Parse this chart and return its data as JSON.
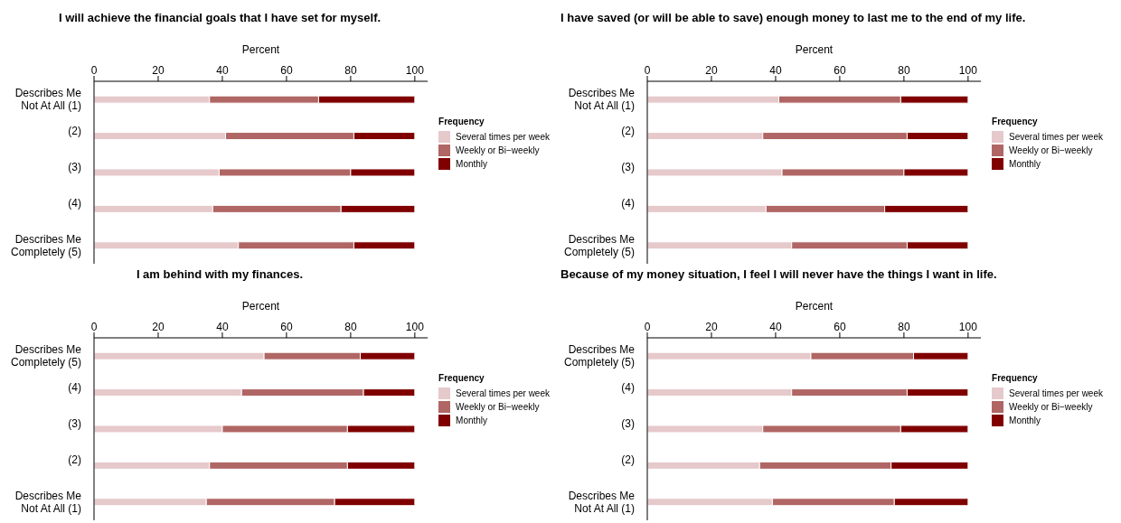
{
  "chart_data": [
    {
      "type": "bar",
      "orientation": "horizontal",
      "stacked": true,
      "title": "I will achieve the financial goals that I have set for myself.",
      "xlabel": "Percent",
      "legend_title": "Frequency",
      "legend": "right",
      "grid": false,
      "xlim": [
        0,
        104
      ],
      "xticks": [
        0,
        20,
        40,
        60,
        80,
        100
      ],
      "categories": [
        "Describes Me\nNot At All (1)",
        "(2)",
        "(3)",
        "(4)",
        "Describes Me\nCompletely (5)"
      ],
      "series": [
        {
          "name": "Several times per week",
          "color": "#e6c9cb",
          "values": [
            36,
            41,
            39,
            37,
            45
          ]
        },
        {
          "name": "Weekly or Bi−weekly",
          "color": "#b06664",
          "values": [
            34,
            40,
            41,
            40,
            36
          ]
        },
        {
          "name": "Monthly",
          "color": "#800000",
          "values": [
            30,
            19,
            20,
            23,
            19
          ]
        }
      ]
    },
    {
      "type": "bar",
      "orientation": "horizontal",
      "stacked": true,
      "title": "I have saved (or will be able to save) enough money to last me to the end of my life.",
      "xlabel": "Percent",
      "legend_title": "Frequency",
      "legend": "right",
      "grid": false,
      "xlim": [
        0,
        104
      ],
      "xticks": [
        0,
        20,
        40,
        60,
        80,
        100
      ],
      "categories": [
        "Describes Me\nNot At All (1)",
        "(2)",
        "(3)",
        "(4)",
        "Describes Me\nCompletely (5)"
      ],
      "series": [
        {
          "name": "Several times per week",
          "color": "#e6c9cb",
          "values": [
            41,
            36,
            42,
            37,
            45
          ]
        },
        {
          "name": "Weekly or Bi−weekly",
          "color": "#b06664",
          "values": [
            38,
            45,
            38,
            37,
            36
          ]
        },
        {
          "name": "Monthly",
          "color": "#800000",
          "values": [
            21,
            19,
            20,
            26,
            19
          ]
        }
      ]
    },
    {
      "type": "bar",
      "orientation": "horizontal",
      "stacked": true,
      "title": "I am behind with my finances.",
      "xlabel": "Percent",
      "legend_title": "Frequency",
      "legend": "right",
      "grid": false,
      "xlim": [
        0,
        104
      ],
      "xticks": [
        0,
        20,
        40,
        60,
        80,
        100
      ],
      "categories": [
        "Describes Me\nCompletely (5)",
        "(4)",
        "(3)",
        "(2)",
        "Describes Me\nNot At All (1)"
      ],
      "series": [
        {
          "name": "Several times per week",
          "color": "#e6c9cb",
          "values": [
            53,
            46,
            40,
            36,
            35
          ]
        },
        {
          "name": "Weekly or Bi−weekly",
          "color": "#b06664",
          "values": [
            30,
            38,
            39,
            43,
            40
          ]
        },
        {
          "name": "Monthly",
          "color": "#800000",
          "values": [
            17,
            16,
            21,
            21,
            25
          ]
        }
      ]
    },
    {
      "type": "bar",
      "orientation": "horizontal",
      "stacked": true,
      "title": "Because of my money situation, I feel I will never have the things I want in life.",
      "xlabel": "Percent",
      "legend_title": "Frequency",
      "legend": "right",
      "grid": false,
      "xlim": [
        0,
        104
      ],
      "xticks": [
        0,
        20,
        40,
        60,
        80,
        100
      ],
      "categories": [
        "Describes Me\nCompletely (5)",
        "(4)",
        "(3)",
        "(2)",
        "Describes Me\nNot At All (1)"
      ],
      "series": [
        {
          "name": "Several times per week",
          "color": "#e6c9cb",
          "values": [
            51,
            45,
            36,
            35,
            39
          ]
        },
        {
          "name": "Weekly or Bi−weekly",
          "color": "#b06664",
          "values": [
            32,
            36,
            43,
            41,
            38
          ]
        },
        {
          "name": "Monthly",
          "color": "#800000",
          "values": [
            17,
            19,
            21,
            24,
            23
          ]
        }
      ]
    }
  ]
}
